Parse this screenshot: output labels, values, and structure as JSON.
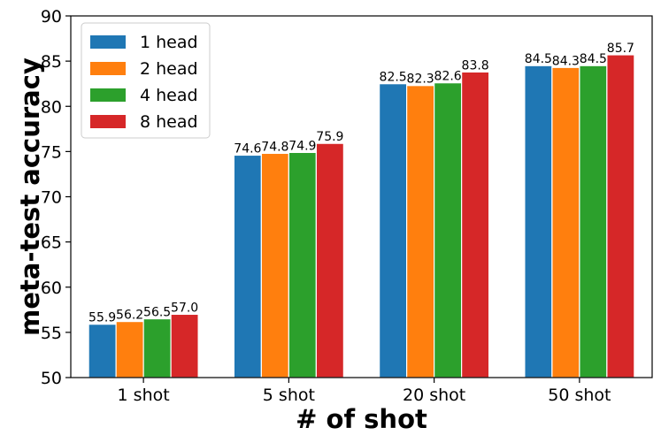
{
  "chart_data": {
    "type": "bar",
    "xlabel": "# of shot",
    "ylabel": "meta-test accuracy",
    "categories": [
      "1 shot",
      "5 shot",
      "20 shot",
      "50 shot"
    ],
    "ylim": [
      50,
      90
    ],
    "yticks": [
      50,
      55,
      60,
      65,
      70,
      75,
      80,
      85,
      90
    ],
    "legend_position": "top-left",
    "grid": false,
    "series": [
      {
        "name": "1 head",
        "color": "#1f77b4",
        "values": [
          55.9,
          74.6,
          82.5,
          84.5
        ],
        "labels": [
          "55.9",
          "74.6",
          "82.5",
          "84.5"
        ]
      },
      {
        "name": "2 head",
        "color": "#ff7f0e",
        "values": [
          56.2,
          74.8,
          82.3,
          84.3
        ],
        "labels": [
          "56.2",
          "74.8",
          "82.3",
          "84.3"
        ]
      },
      {
        "name": "4 head",
        "color": "#2ca02c",
        "values": [
          56.5,
          74.9,
          82.6,
          84.5
        ],
        "labels": [
          "56.5",
          "74.9",
          "82.6",
          "84.5"
        ]
      },
      {
        "name": "8 head",
        "color": "#d62728",
        "values": [
          57.0,
          75.9,
          83.8,
          85.7
        ],
        "labels": [
          "57.0",
          "75.9",
          "83.8",
          "85.7"
        ]
      }
    ]
  }
}
